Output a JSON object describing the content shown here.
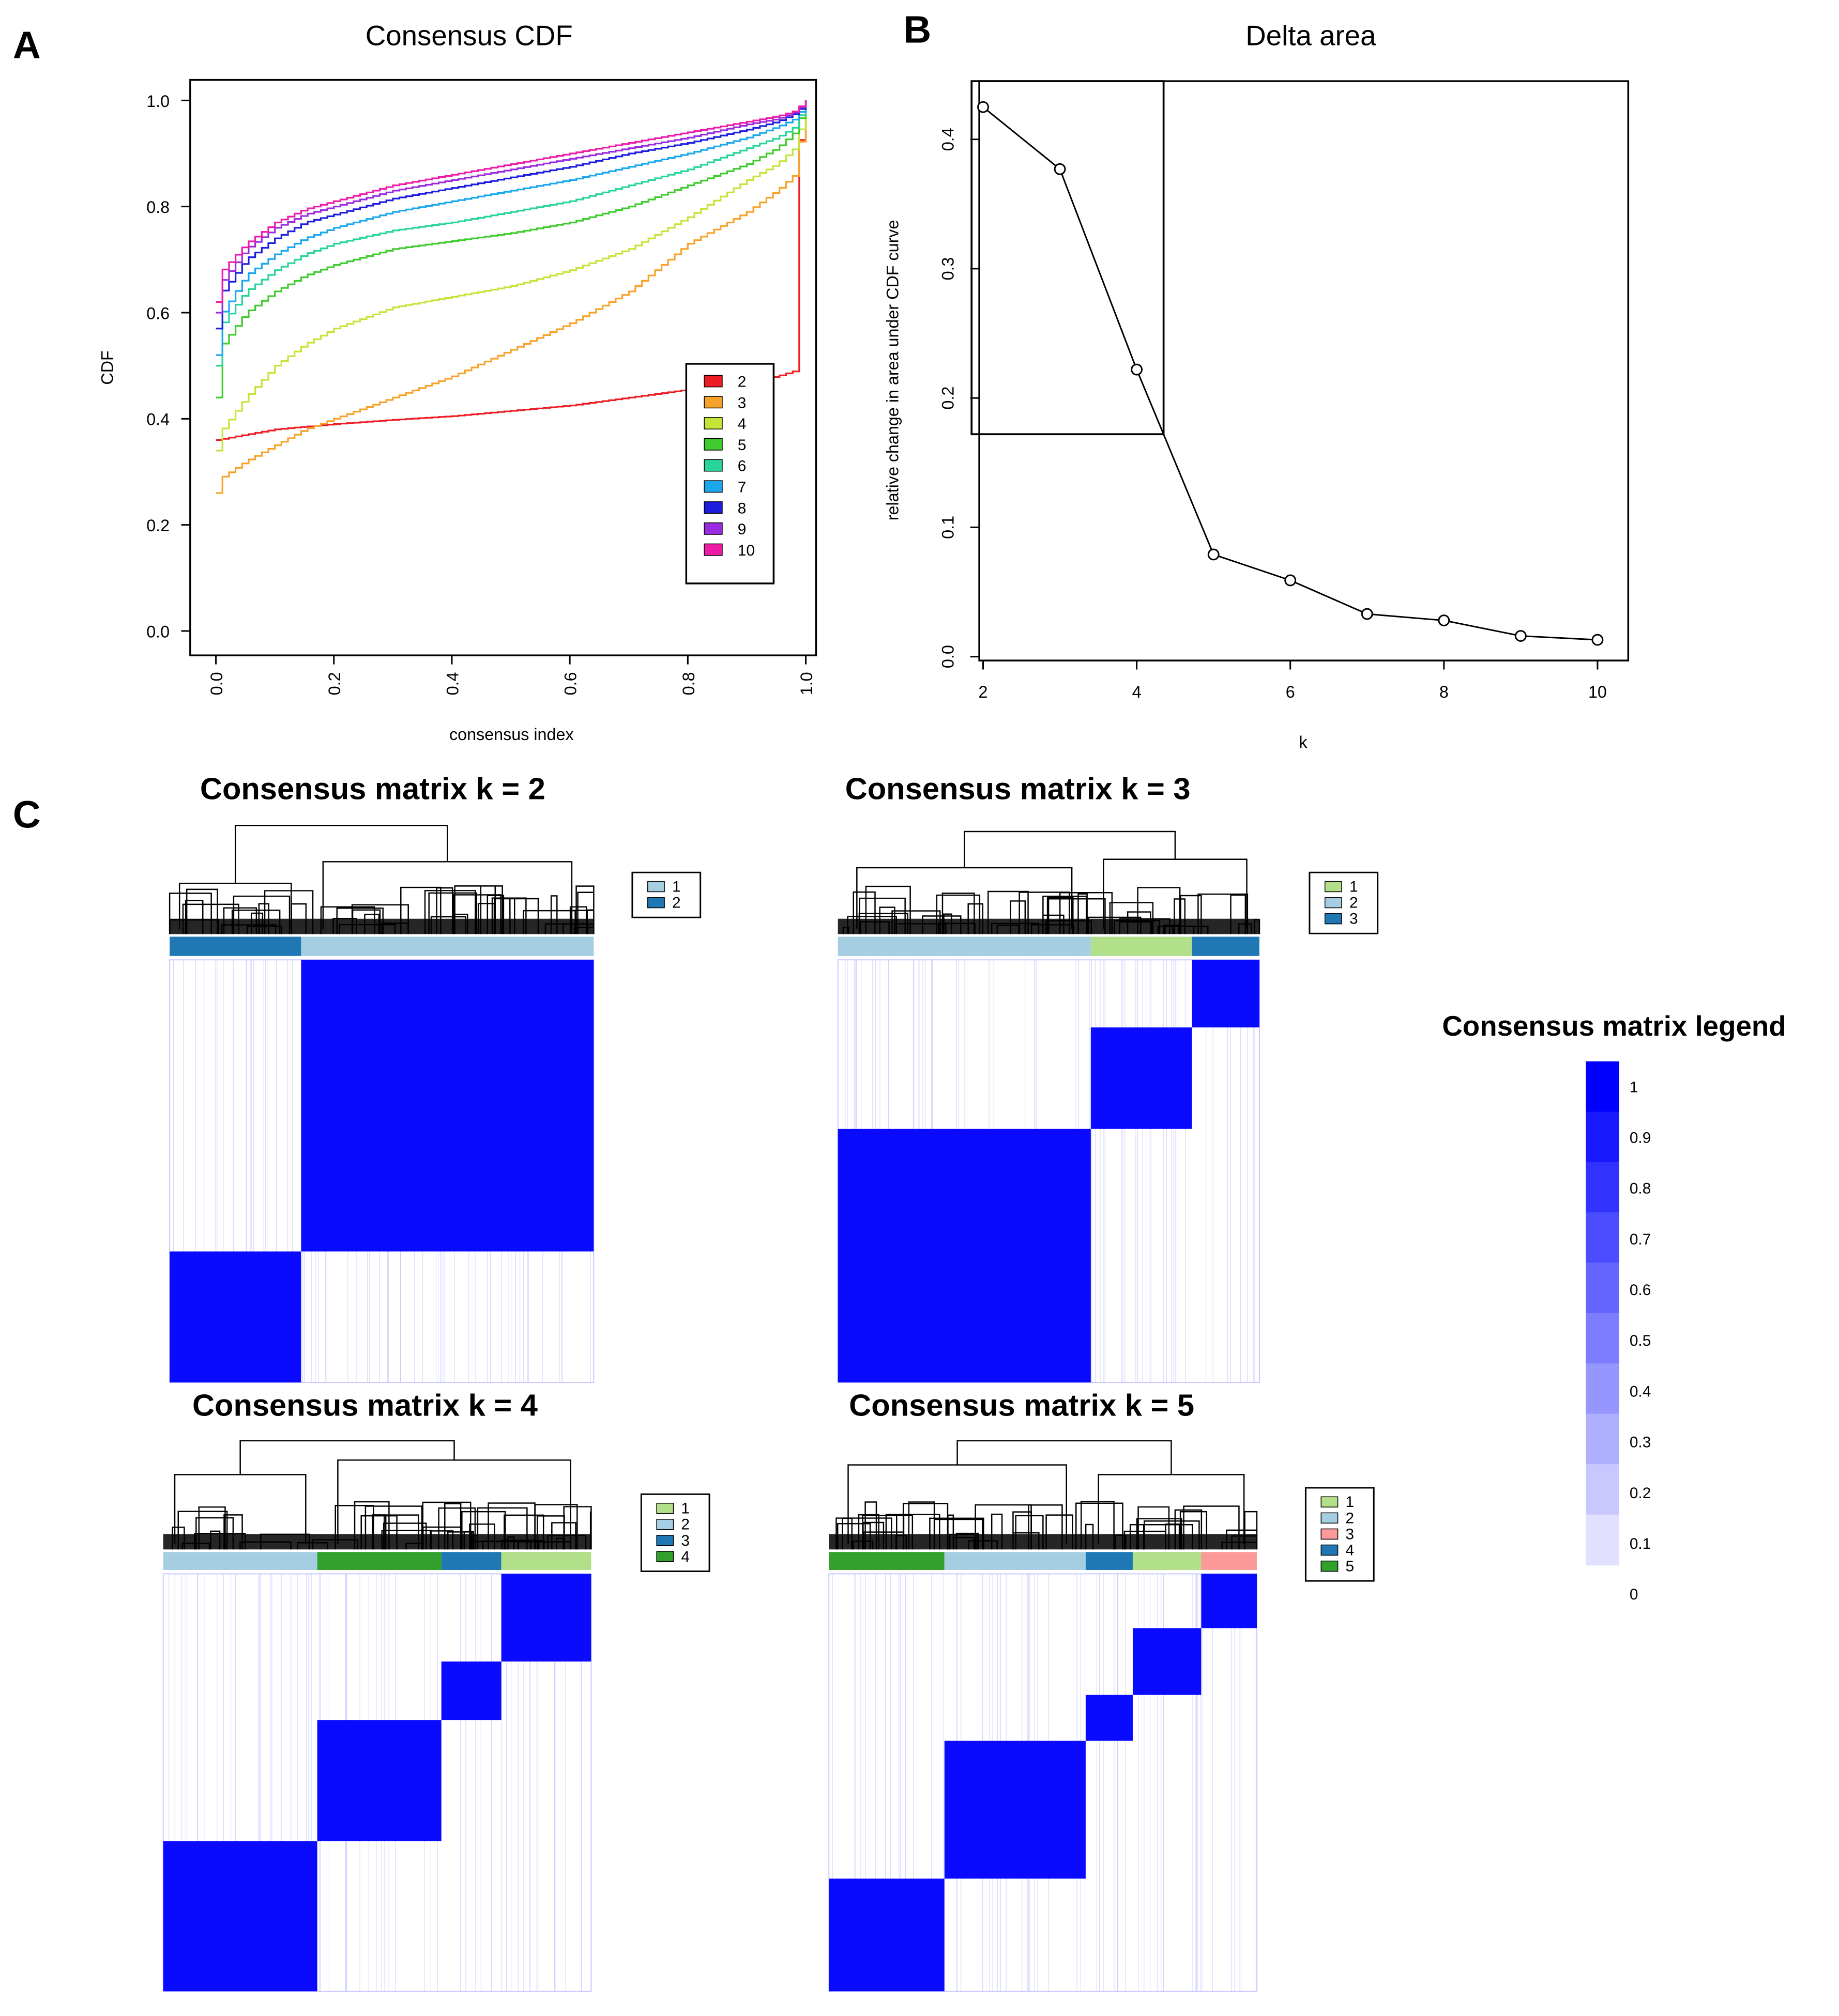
{
  "panels": {
    "a": "A",
    "b": "B",
    "c": "C"
  },
  "chart_data": [
    {
      "id": "consensus-cdf",
      "type": "line",
      "title": "Consensus CDF",
      "xlabel": "consensus index",
      "ylabel": "CDF",
      "xlim": [
        0,
        1
      ],
      "ylim": [
        0,
        1
      ],
      "xticks": [
        "0.0",
        "0.2",
        "0.4",
        "0.6",
        "0.8",
        "1.0"
      ],
      "yticks": [
        "0.0",
        "0.2",
        "0.4",
        "0.6",
        "0.8",
        "1.0"
      ],
      "legend_position": "inside-right",
      "x": [
        0,
        0.01,
        0.05,
        0.1,
        0.15,
        0.2,
        0.3,
        0.4,
        0.5,
        0.6,
        0.7,
        0.8,
        0.9,
        0.95,
        0.98,
        0.99,
        1.0
      ],
      "series": [
        {
          "name": "2",
          "color": "#ee1c24",
          "values": [
            0.36,
            0.362,
            0.37,
            0.38,
            0.385,
            0.39,
            0.398,
            0.405,
            0.415,
            0.425,
            0.44,
            0.455,
            0.47,
            0.48,
            0.49,
            0.98,
            1.0
          ]
        },
        {
          "name": "3",
          "color": "#f7a32b",
          "values": [
            0.26,
            0.29,
            0.32,
            0.35,
            0.38,
            0.4,
            0.44,
            0.48,
            0.53,
            0.58,
            0.64,
            0.73,
            0.79,
            0.83,
            0.86,
            0.93,
            1.0
          ]
        },
        {
          "name": "4",
          "color": "#c4e538",
          "values": [
            0.34,
            0.38,
            0.44,
            0.5,
            0.54,
            0.57,
            0.61,
            0.63,
            0.65,
            0.68,
            0.72,
            0.78,
            0.85,
            0.88,
            0.91,
            0.95,
            1.0
          ]
        },
        {
          "name": "5",
          "color": "#3ecb2c",
          "values": [
            0.44,
            0.54,
            0.6,
            0.64,
            0.67,
            0.69,
            0.72,
            0.735,
            0.75,
            0.77,
            0.8,
            0.84,
            0.88,
            0.91,
            0.94,
            0.97,
            1.0
          ]
        },
        {
          "name": "6",
          "color": "#27d49a",
          "values": [
            0.5,
            0.58,
            0.64,
            0.68,
            0.71,
            0.73,
            0.755,
            0.77,
            0.79,
            0.81,
            0.84,
            0.87,
            0.91,
            0.93,
            0.95,
            0.975,
            1.0
          ]
        },
        {
          "name": "7",
          "color": "#1aa7ee",
          "values": [
            0.52,
            0.6,
            0.67,
            0.71,
            0.74,
            0.76,
            0.79,
            0.81,
            0.83,
            0.85,
            0.875,
            0.9,
            0.93,
            0.95,
            0.965,
            0.98,
            1.0
          ]
        },
        {
          "name": "8",
          "color": "#1d1de0",
          "values": [
            0.57,
            0.64,
            0.7,
            0.74,
            0.77,
            0.785,
            0.815,
            0.835,
            0.855,
            0.875,
            0.9,
            0.92,
            0.945,
            0.96,
            0.975,
            0.985,
            1.0
          ]
        },
        {
          "name": "9",
          "color": "#9b2be0",
          "values": [
            0.6,
            0.66,
            0.72,
            0.76,
            0.785,
            0.8,
            0.83,
            0.85,
            0.87,
            0.89,
            0.91,
            0.93,
            0.955,
            0.965,
            0.978,
            0.988,
            1.0
          ]
        },
        {
          "name": "10",
          "color": "#ee1aa8",
          "values": [
            0.62,
            0.68,
            0.73,
            0.77,
            0.795,
            0.81,
            0.84,
            0.86,
            0.88,
            0.9,
            0.92,
            0.94,
            0.96,
            0.97,
            0.98,
            0.99,
            1.0
          ]
        }
      ]
    },
    {
      "id": "delta-area",
      "type": "line",
      "title": "Delta area",
      "xlabel": "k",
      "ylabel": "relative change in area under CDF curve",
      "xlim": [
        1.95,
        10.4
      ],
      "ylim": [
        -0.003,
        0.445
      ],
      "xticks": [
        "2",
        "4",
        "6",
        "8",
        "10"
      ],
      "yticks": [
        "0.0",
        "0.1",
        "0.2",
        "0.3",
        "0.4"
      ],
      "x": [
        2,
        3,
        4,
        5,
        6,
        7,
        8,
        9,
        10
      ],
      "values": [
        0.425,
        0.377,
        0.222,
        0.079,
        0.059,
        0.033,
        0.028,
        0.016,
        0.013
      ],
      "highlight_box": {
        "x_from": 1.85,
        "x_to": 4.35,
        "y_from": 0.172,
        "y_to": 0.445
      }
    },
    {
      "id": "consensus-matrices",
      "type": "heatmap",
      "matrices": [
        {
          "title": "Consensus matrix k = 2",
          "legend": [
            {
              "label": "1",
              "color": "#a6cee3"
            },
            {
              "label": "2",
              "color": "#1f78b4"
            }
          ],
          "clusters_in_order": [
            {
              "label": "2",
              "color": "#1f78b4",
              "share": 0.31
            },
            {
              "label": "1",
              "color": "#a6cee3",
              "share": 0.69
            }
          ],
          "blocks_top_to_bottom": [
            {
              "share": 0.69,
              "cluster": 1
            },
            {
              "share": 0.31,
              "cluster": 0
            }
          ],
          "dendrogram": {
            "left_share": 0.31,
            "root": 0.9,
            "left_node": 0.42,
            "right_node": 0.6
          }
        },
        {
          "title": "Consensus matrix k = 3",
          "legend": [
            {
              "label": "1",
              "color": "#b2df8a"
            },
            {
              "label": "2",
              "color": "#a6cee3"
            },
            {
              "label": "3",
              "color": "#1f78b4"
            }
          ],
          "clusters_in_order": [
            {
              "label": "2",
              "color": "#a6cee3",
              "share": 0.6
            },
            {
              "label": "1",
              "color": "#b2df8a",
              "share": 0.24
            },
            {
              "label": "3",
              "color": "#1f78b4",
              "share": 0.16
            }
          ],
          "blocks_top_to_bottom": [
            {
              "share": 0.16,
              "cluster": 2
            },
            {
              "share": 0.24,
              "cluster": 1
            },
            {
              "share": 0.6,
              "cluster": 0
            }
          ],
          "dendrogram": {
            "left_share": 0.6,
            "root": 0.85,
            "left_node": 0.55,
            "right_node": 0.62
          }
        },
        {
          "title": "Consensus matrix k = 4",
          "legend": [
            {
              "label": "1",
              "color": "#b2df8a"
            },
            {
              "label": "2",
              "color": "#a6cee3"
            },
            {
              "label": "3",
              "color": "#1f78b4"
            },
            {
              "label": "4",
              "color": "#33a02c"
            }
          ],
          "clusters_in_order": [
            {
              "label": "2",
              "color": "#a6cee3",
              "share": 0.36
            },
            {
              "label": "4",
              "color": "#33a02c",
              "share": 0.29
            },
            {
              "label": "3",
              "color": "#1f78b4",
              "share": 0.14
            },
            {
              "label": "1",
              "color": "#b2df8a",
              "share": 0.21
            }
          ],
          "blocks_top_to_bottom": [
            {
              "share": 0.21,
              "cluster": 3
            },
            {
              "share": 0.14,
              "cluster": 2
            },
            {
              "share": 0.29,
              "cluster": 1
            },
            {
              "share": 0.36,
              "cluster": 0
            }
          ],
          "dendrogram": {
            "left_share": 0.36,
            "root": 0.9,
            "left_node": 0.62,
            "right_node": 0.74
          }
        },
        {
          "title": "Consensus matrix k = 5",
          "legend": [
            {
              "label": "1",
              "color": "#b2df8a"
            },
            {
              "label": "2",
              "color": "#a6cee3"
            },
            {
              "label": "3",
              "color": "#fb9a99"
            },
            {
              "label": "4",
              "color": "#1f78b4"
            },
            {
              "label": "5",
              "color": "#33a02c"
            }
          ],
          "clusters_in_order": [
            {
              "label": "5",
              "color": "#33a02c",
              "share": 0.27
            },
            {
              "label": "2",
              "color": "#a6cee3",
              "share": 0.33
            },
            {
              "label": "4",
              "color": "#1f78b4",
              "share": 0.11
            },
            {
              "label": "1",
              "color": "#b2df8a",
              "share": 0.16
            },
            {
              "label": "3",
              "color": "#fb9a99",
              "share": 0.13
            }
          ],
          "blocks_top_to_bottom": [
            {
              "share": 0.13,
              "cluster": 4
            },
            {
              "share": 0.16,
              "cluster": 3
            },
            {
              "share": 0.11,
              "cluster": 2
            },
            {
              "share": 0.33,
              "cluster": 1
            },
            {
              "share": 0.27,
              "cluster": 0
            }
          ],
          "dendrogram": {
            "left_share": 0.6,
            "root": 0.9,
            "left_node": 0.7,
            "right_node": 0.62
          }
        }
      ]
    },
    {
      "id": "consensus-legend",
      "type": "colorbar",
      "title": "Consensus matrix legend",
      "levels": [
        "1",
        "0.9",
        "0.8",
        "0.7",
        "0.6",
        "0.5",
        "0.4",
        "0.3",
        "0.2",
        "0.1",
        "0"
      ],
      "low_color": "#ffffff",
      "high_color": "#0000ff"
    }
  ]
}
